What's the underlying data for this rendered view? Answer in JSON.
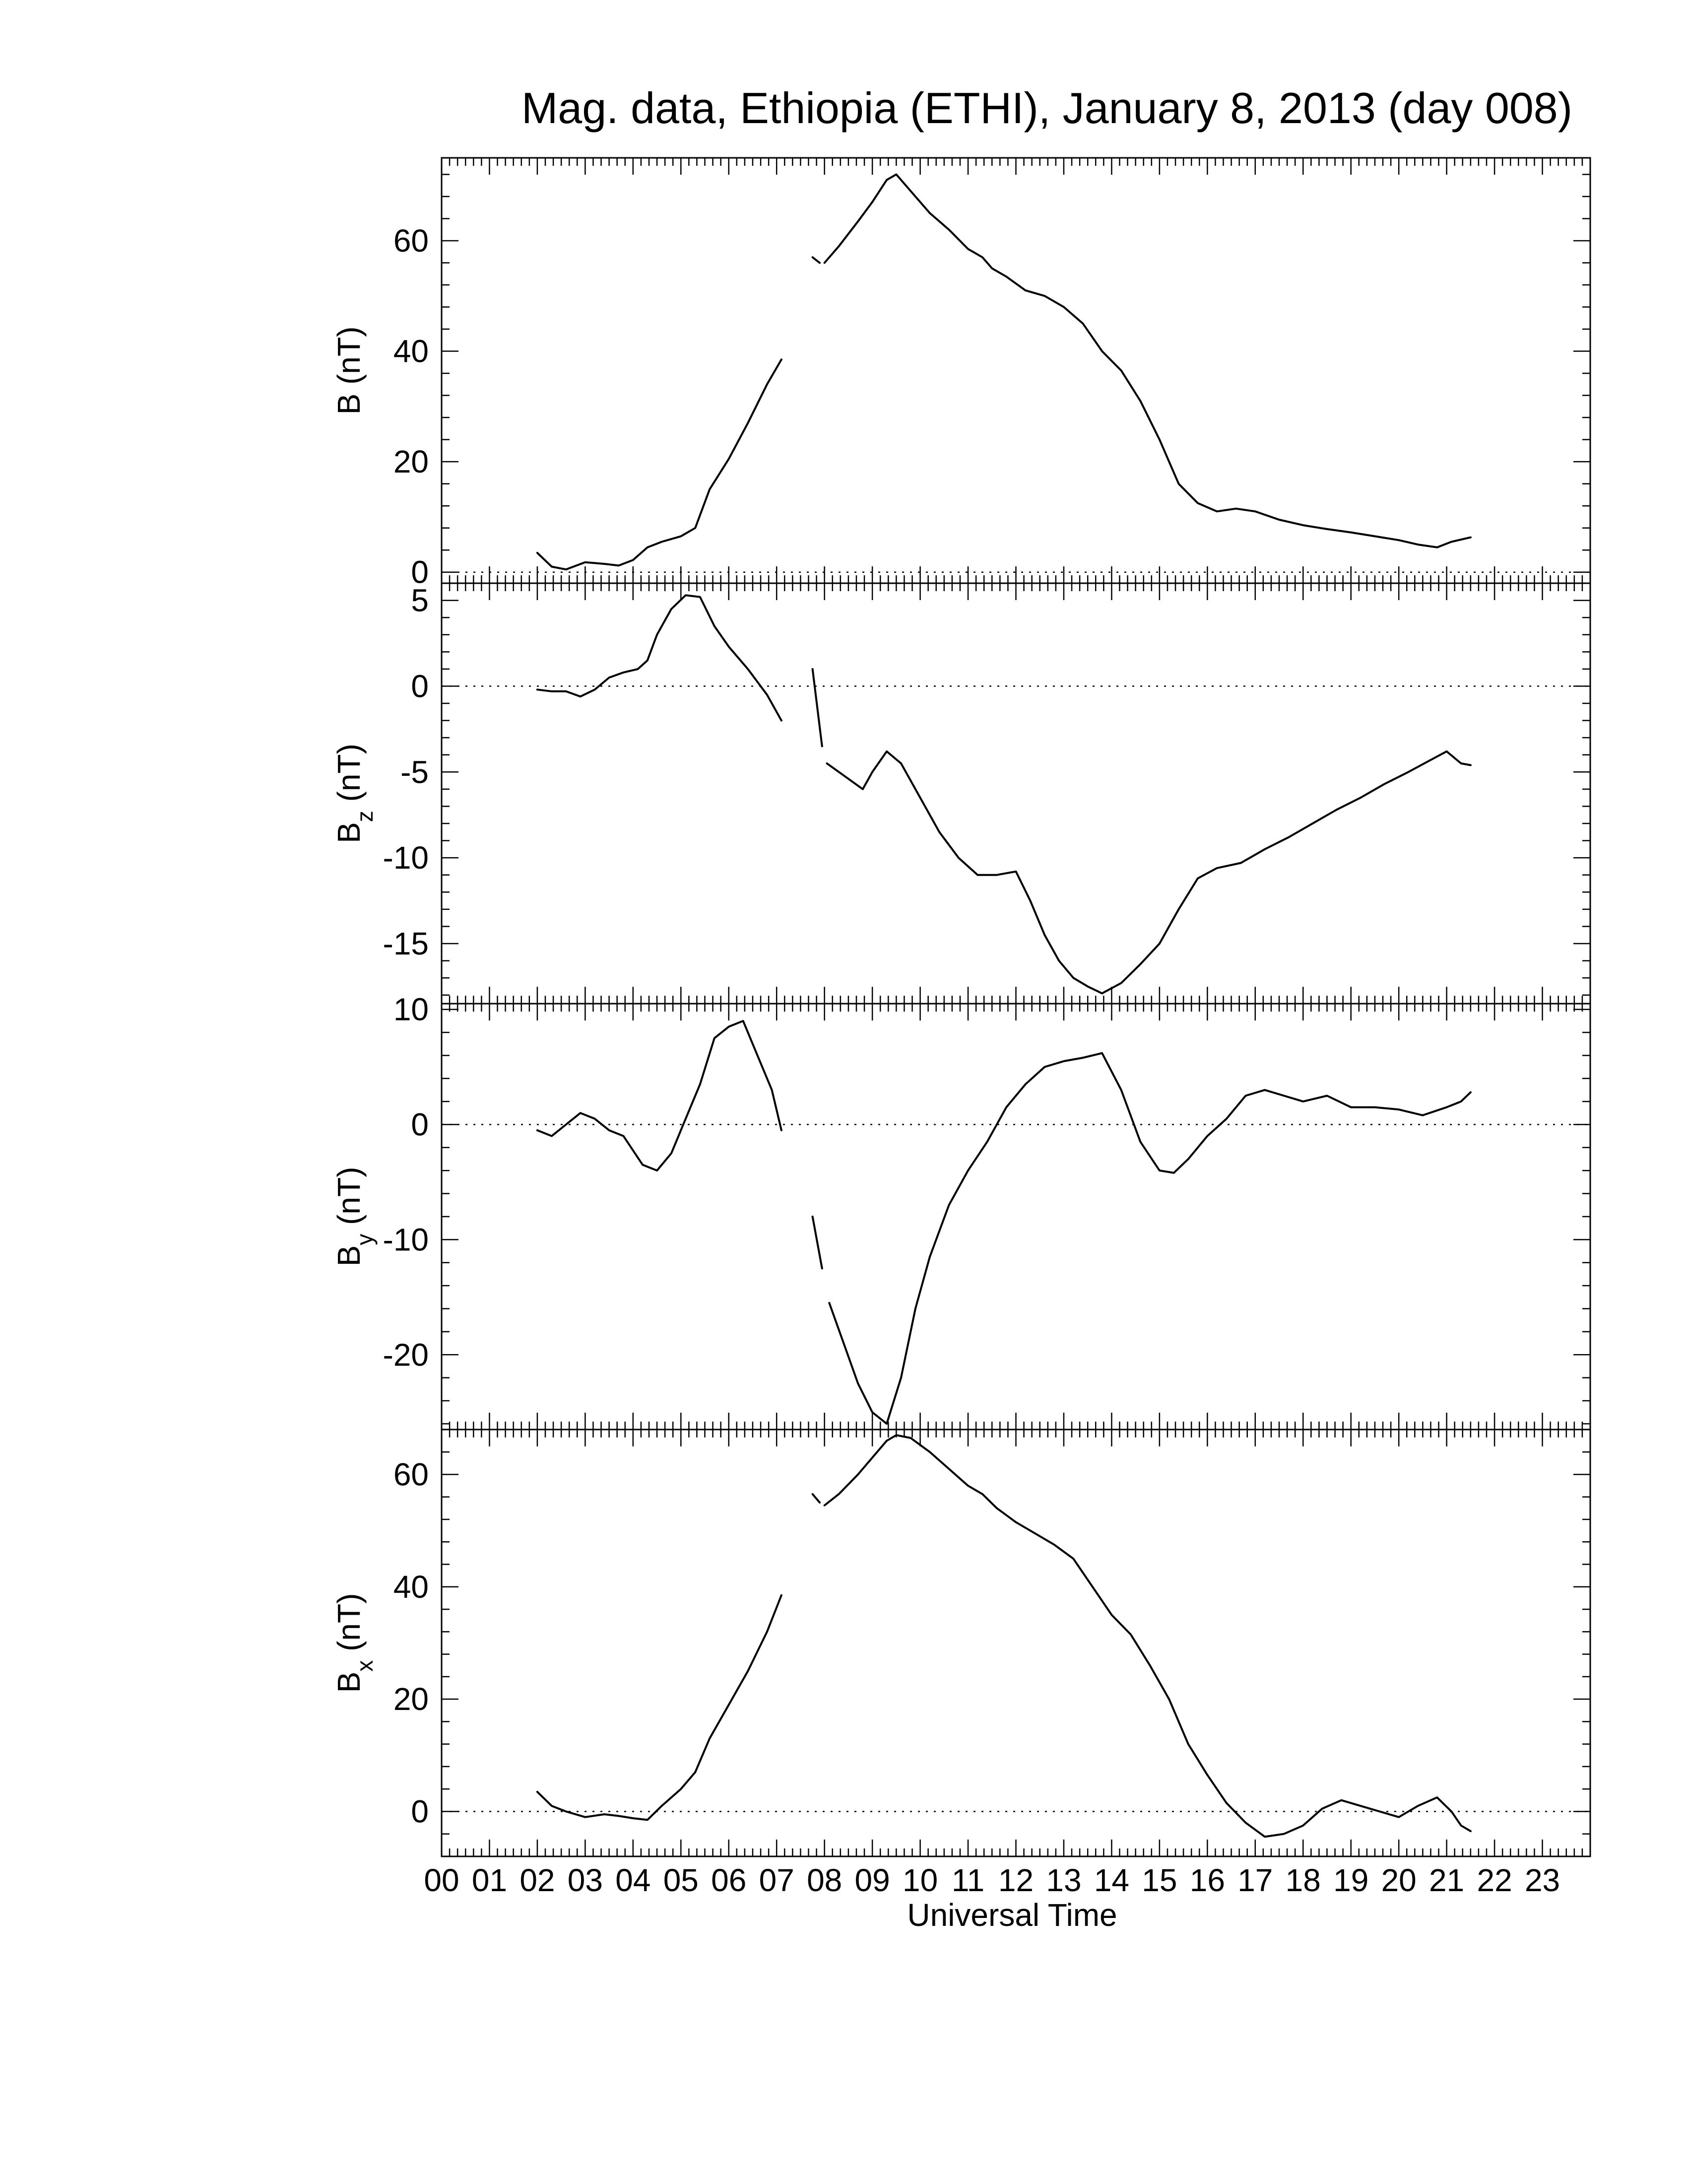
{
  "title": "Mag. data, Ethiopia (ETHI), January 8, 2013 (day 008)",
  "xlabel": "Universal Time",
  "x_tick_labels": [
    "00",
    "01",
    "02",
    "03",
    "04",
    "05",
    "06",
    "07",
    "08",
    "09",
    "10",
    "11",
    "12",
    "13",
    "14",
    "15",
    "16",
    "17",
    "18",
    "19",
    "20",
    "21",
    "22",
    "23"
  ],
  "chart_data": [
    {
      "type": "line",
      "ylabel": "B (nT)",
      "ylabel_main": "B",
      "ylabel_sub": "",
      "ylabel_units": "(nT)",
      "xlim": [
        0,
        24
      ],
      "ylim": [
        -2,
        75
      ],
      "yticks": [
        0,
        20,
        40,
        60
      ],
      "zero_line": true,
      "segments": [
        [
          [
            2.0,
            3.5
          ],
          [
            2.3,
            1.0
          ],
          [
            2.6,
            0.5
          ],
          [
            3.0,
            1.8
          ],
          [
            3.4,
            1.5
          ],
          [
            3.7,
            1.2
          ],
          [
            4.0,
            2.2
          ],
          [
            4.3,
            4.5
          ],
          [
            4.6,
            5.5
          ],
          [
            5.0,
            6.5
          ],
          [
            5.3,
            8.0
          ],
          [
            5.6,
            15.0
          ],
          [
            6.0,
            20.5
          ],
          [
            6.4,
            27.0
          ],
          [
            6.8,
            34.0
          ],
          [
            7.1,
            38.5
          ]
        ],
        [
          [
            7.75,
            57.0
          ],
          [
            7.9,
            56.0
          ]
        ],
        [
          [
            8.0,
            56.0
          ],
          [
            8.3,
            59.0
          ],
          [
            8.7,
            63.5
          ],
          [
            9.0,
            67.0
          ],
          [
            9.3,
            71.0
          ],
          [
            9.5,
            72.0
          ],
          [
            9.8,
            69.0
          ],
          [
            10.2,
            65.0
          ],
          [
            10.6,
            62.0
          ],
          [
            11.0,
            58.5
          ],
          [
            11.3,
            57.0
          ],
          [
            11.5,
            55.0
          ],
          [
            11.8,
            53.5
          ],
          [
            12.2,
            51.0
          ],
          [
            12.6,
            50.0
          ],
          [
            13.0,
            48.0
          ],
          [
            13.4,
            45.0
          ],
          [
            13.8,
            40.0
          ],
          [
            14.2,
            36.5
          ],
          [
            14.6,
            31.0
          ],
          [
            15.0,
            24.0
          ],
          [
            15.4,
            16.0
          ],
          [
            15.8,
            12.5
          ],
          [
            16.2,
            11.0
          ],
          [
            16.6,
            11.5
          ],
          [
            17.0,
            11.0
          ],
          [
            17.5,
            9.5
          ],
          [
            18.0,
            8.5
          ],
          [
            18.5,
            7.8
          ],
          [
            19.0,
            7.2
          ],
          [
            19.5,
            6.5
          ],
          [
            20.0,
            5.8
          ],
          [
            20.4,
            5.0
          ],
          [
            20.8,
            4.5
          ],
          [
            21.1,
            5.5
          ],
          [
            21.5,
            6.3
          ]
        ]
      ]
    },
    {
      "type": "line",
      "ylabel": "Bz (nT)",
      "ylabel_main": "B",
      "ylabel_sub": "z",
      "ylabel_units": "(nT)",
      "xlim": [
        0,
        24
      ],
      "ylim": [
        -18.5,
        6
      ],
      "yticks": [
        5,
        0,
        -5,
        -10,
        -15
      ],
      "zero_line": true,
      "segments": [
        [
          [
            2.0,
            -0.2
          ],
          [
            2.3,
            -0.3
          ],
          [
            2.6,
            -0.3
          ],
          [
            2.9,
            -0.6
          ],
          [
            3.2,
            -0.2
          ],
          [
            3.5,
            0.5
          ],
          [
            3.8,
            0.8
          ],
          [
            4.1,
            1.0
          ],
          [
            4.3,
            1.5
          ],
          [
            4.5,
            3.0
          ],
          [
            4.8,
            4.5
          ],
          [
            5.1,
            5.3
          ],
          [
            5.4,
            5.2
          ],
          [
            5.7,
            3.5
          ],
          [
            6.0,
            2.3
          ],
          [
            6.4,
            1.0
          ],
          [
            6.8,
            -0.5
          ],
          [
            7.1,
            -2.0
          ]
        ],
        [
          [
            7.75,
            1.0
          ],
          [
            7.95,
            -3.5
          ]
        ],
        [
          [
            8.05,
            -4.5
          ],
          [
            8.3,
            -5.0
          ],
          [
            8.6,
            -5.6
          ],
          [
            8.8,
            -6.0
          ],
          [
            9.0,
            -5.0
          ],
          [
            9.3,
            -3.8
          ],
          [
            9.6,
            -4.5
          ],
          [
            10.0,
            -6.5
          ],
          [
            10.4,
            -8.5
          ],
          [
            10.8,
            -10.0
          ],
          [
            11.2,
            -11.0
          ],
          [
            11.6,
            -11.0
          ],
          [
            12.0,
            -10.8
          ],
          [
            12.3,
            -12.5
          ],
          [
            12.6,
            -14.5
          ],
          [
            12.9,
            -16.0
          ],
          [
            13.2,
            -17.0
          ],
          [
            13.5,
            -17.5
          ],
          [
            13.8,
            -17.9
          ],
          [
            14.2,
            -17.3
          ],
          [
            14.6,
            -16.2
          ],
          [
            15.0,
            -15.0
          ],
          [
            15.4,
            -13.0
          ],
          [
            15.8,
            -11.2
          ],
          [
            16.2,
            -10.6
          ],
          [
            16.7,
            -10.3
          ],
          [
            17.2,
            -9.5
          ],
          [
            17.7,
            -8.8
          ],
          [
            18.2,
            -8.0
          ],
          [
            18.7,
            -7.2
          ],
          [
            19.2,
            -6.5
          ],
          [
            19.7,
            -5.7
          ],
          [
            20.2,
            -5.0
          ],
          [
            20.6,
            -4.4
          ],
          [
            21.0,
            -3.8
          ],
          [
            21.3,
            -4.5
          ],
          [
            21.5,
            -4.6
          ]
        ]
      ]
    },
    {
      "type": "line",
      "ylabel": "By (nT)",
      "ylabel_main": "B",
      "ylabel_sub": "y",
      "ylabel_units": "(nT)",
      "xlim": [
        0,
        24
      ],
      "ylim": [
        -26.5,
        10.5
      ],
      "yticks": [
        10,
        0,
        -10,
        -20
      ],
      "zero_line": true,
      "segments": [
        [
          [
            2.0,
            -0.5
          ],
          [
            2.3,
            -1.0
          ],
          [
            2.6,
            0.0
          ],
          [
            2.9,
            1.0
          ],
          [
            3.2,
            0.5
          ],
          [
            3.5,
            -0.5
          ],
          [
            3.8,
            -1.0
          ],
          [
            4.2,
            -3.5
          ],
          [
            4.5,
            -4.0
          ],
          [
            4.8,
            -2.5
          ],
          [
            5.1,
            0.5
          ],
          [
            5.4,
            3.5
          ],
          [
            5.7,
            7.5
          ],
          [
            6.0,
            8.5
          ],
          [
            6.3,
            9.0
          ],
          [
            6.6,
            6.0
          ],
          [
            6.9,
            3.0
          ],
          [
            7.1,
            -0.5
          ]
        ],
        [
          [
            7.75,
            -8.0
          ],
          [
            7.95,
            -12.5
          ]
        ],
        [
          [
            8.1,
            -15.5
          ],
          [
            8.4,
            -19.0
          ],
          [
            8.7,
            -22.5
          ],
          [
            9.0,
            -25.0
          ],
          [
            9.3,
            -26.0
          ],
          [
            9.6,
            -22.0
          ],
          [
            9.9,
            -16.0
          ],
          [
            10.2,
            -11.5
          ],
          [
            10.6,
            -7.0
          ],
          [
            11.0,
            -4.0
          ],
          [
            11.4,
            -1.5
          ],
          [
            11.8,
            1.5
          ],
          [
            12.2,
            3.5
          ],
          [
            12.6,
            5.0
          ],
          [
            13.0,
            5.5
          ],
          [
            13.4,
            5.8
          ],
          [
            13.8,
            6.2
          ],
          [
            14.2,
            3.0
          ],
          [
            14.6,
            -1.5
          ],
          [
            15.0,
            -4.0
          ],
          [
            15.3,
            -4.2
          ],
          [
            15.6,
            -3.0
          ],
          [
            16.0,
            -1.0
          ],
          [
            16.4,
            0.5
          ],
          [
            16.8,
            2.5
          ],
          [
            17.2,
            3.0
          ],
          [
            17.6,
            2.5
          ],
          [
            18.0,
            2.0
          ],
          [
            18.5,
            2.5
          ],
          [
            19.0,
            1.5
          ],
          [
            19.5,
            1.5
          ],
          [
            20.0,
            1.3
          ],
          [
            20.5,
            0.8
          ],
          [
            21.0,
            1.5
          ],
          [
            21.3,
            2.0
          ],
          [
            21.5,
            2.8
          ]
        ]
      ]
    },
    {
      "type": "line",
      "ylabel": "Bx (nT)",
      "ylabel_main": "B",
      "ylabel_sub": "x",
      "ylabel_units": "(nT)",
      "xlim": [
        0,
        24
      ],
      "ylim": [
        -8,
        68
      ],
      "yticks": [
        0,
        20,
        40,
        60
      ],
      "zero_line": true,
      "segments": [
        [
          [
            2.0,
            3.5
          ],
          [
            2.3,
            1.0
          ],
          [
            2.6,
            0.0
          ],
          [
            3.0,
            -1.0
          ],
          [
            3.4,
            -0.5
          ],
          [
            3.7,
            -0.8
          ],
          [
            4.0,
            -1.2
          ],
          [
            4.3,
            -1.5
          ],
          [
            4.6,
            1.0
          ],
          [
            5.0,
            4.0
          ],
          [
            5.3,
            7.0
          ],
          [
            5.6,
            13.0
          ],
          [
            6.0,
            19.0
          ],
          [
            6.4,
            25.0
          ],
          [
            6.8,
            32.0
          ],
          [
            7.1,
            38.5
          ]
        ],
        [
          [
            7.75,
            56.5
          ],
          [
            7.9,
            55.0
          ]
        ],
        [
          [
            8.0,
            54.5
          ],
          [
            8.3,
            56.5
          ],
          [
            8.7,
            60.0
          ],
          [
            9.0,
            63.0
          ],
          [
            9.3,
            66.0
          ],
          [
            9.5,
            67.0
          ],
          [
            9.8,
            66.5
          ],
          [
            10.2,
            64.0
          ],
          [
            10.6,
            61.0
          ],
          [
            11.0,
            58.0
          ],
          [
            11.3,
            56.5
          ],
          [
            11.6,
            54.0
          ],
          [
            12.0,
            51.5
          ],
          [
            12.4,
            49.5
          ],
          [
            12.8,
            47.5
          ],
          [
            13.2,
            45.0
          ],
          [
            13.6,
            40.0
          ],
          [
            14.0,
            35.0
          ],
          [
            14.4,
            31.5
          ],
          [
            14.8,
            26.0
          ],
          [
            15.2,
            20.0
          ],
          [
            15.6,
            12.0
          ],
          [
            16.0,
            6.5
          ],
          [
            16.4,
            1.5
          ],
          [
            16.8,
            -2.0
          ],
          [
            17.2,
            -4.5
          ],
          [
            17.6,
            -4.0
          ],
          [
            18.0,
            -2.5
          ],
          [
            18.4,
            0.5
          ],
          [
            18.8,
            2.0
          ],
          [
            19.2,
            1.0
          ],
          [
            19.6,
            0.0
          ],
          [
            20.0,
            -1.0
          ],
          [
            20.4,
            1.0
          ],
          [
            20.8,
            2.5
          ],
          [
            21.1,
            0.0
          ],
          [
            21.3,
            -2.5
          ],
          [
            21.5,
            -3.5
          ]
        ]
      ]
    }
  ]
}
